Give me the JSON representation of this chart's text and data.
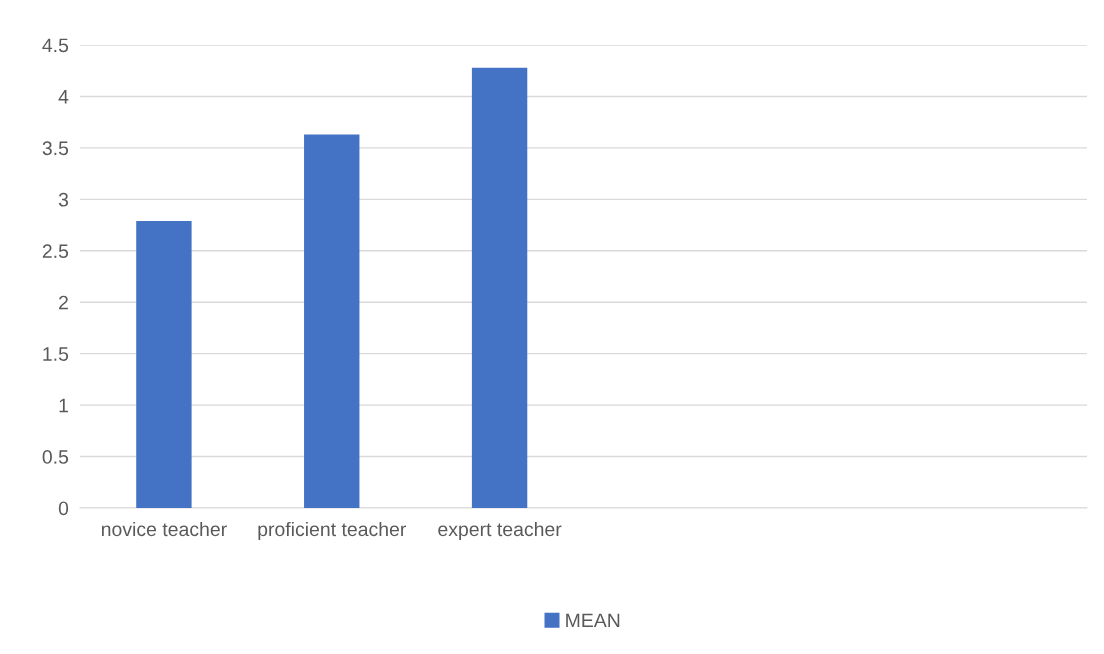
{
  "chart_data": {
    "type": "bar",
    "categories": [
      "novice teacher",
      "proficient teacher",
      "expert teacher",
      null,
      null,
      null
    ],
    "series": [
      {
        "name": "MEAN",
        "color": "#4472c4",
        "values": [
          2.79,
          3.63,
          4.28,
          null,
          null,
          null
        ]
      }
    ],
    "ylim": [
      0,
      4.5
    ],
    "yticks": [
      0,
      0.5,
      1,
      1.5,
      2,
      2.5,
      3,
      3.5,
      4,
      4.5
    ],
    "grid": "y",
    "legend": "bottom"
  }
}
